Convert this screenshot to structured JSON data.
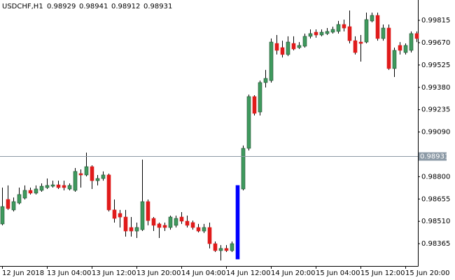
{
  "chart_data": {
    "type": "candlestick",
    "symbol": "USDCHF,H1",
    "ohlc": [
      0.98929,
      0.98941,
      0.98912,
      0.98931
    ],
    "categories": [
      "12 Jun 2018",
      null,
      null,
      null,
      null,
      null,
      null,
      null,
      "13 Jun 04:00",
      null,
      null,
      null,
      null,
      null,
      null,
      null,
      "13 Jun 12:00",
      null,
      null,
      null,
      null,
      null,
      null,
      null,
      "13 Jun 20:00",
      null,
      null,
      null,
      null,
      null,
      null,
      null,
      "14 Jun 04:00",
      null,
      null,
      null,
      null,
      null,
      null,
      null,
      "14 Jun 12:00",
      null,
      null,
      null,
      null,
      null,
      null,
      null,
      "14 Jun 20:00",
      null,
      null,
      null,
      null,
      null,
      null,
      null,
      "15 Jun 04:00",
      null,
      null,
      null,
      null,
      null,
      null,
      null,
      "15 Jun 12:00",
      null,
      null,
      null,
      null,
      null,
      null,
      null,
      "15 Jun 20:00",
      null,
      null
    ],
    "open": [
      0.98493,
      0.98652,
      0.98584,
      0.98629,
      0.98661,
      0.98711,
      0.98693,
      0.98711,
      0.98729,
      0.98738,
      0.98747,
      0.98743,
      0.9872,
      0.98711,
      0.9882,
      0.98811,
      0.98865,
      0.98774,
      0.98788,
      0.98811,
      0.98584,
      0.98561,
      0.98538,
      0.9847,
      0.98447,
      0.98456,
      0.98638,
      0.98529,
      0.98493,
      0.98484,
      0.9847,
      0.98484,
      0.98538,
      0.98511,
      0.98502,
      0.9847,
      0.98447,
      0.9847,
      0.98365,
      0.9832,
      0.98334,
      0.9832,
      0.98265,
      0.9872,
      0.98984,
      0.9932,
      0.9922,
      0.99411,
      0.99424,
      0.99665,
      0.99638,
      0.99593,
      0.99665,
      0.99638,
      0.99647,
      0.99711,
      0.99738,
      0.9972,
      0.99729,
      0.99738,
      0.99743,
      0.99788,
      0.99774,
      0.99683,
      0.99674,
      0.99674,
      0.99811,
      0.99847,
      0.99697,
      0.99765,
      0.99502,
      0.99652,
      0.99606,
      0.9962,
      0.99729
    ],
    "high": [
      0.98729,
      0.98743,
      0.98665,
      0.98729,
      0.98743,
      0.98729,
      0.98743,
      0.98756,
      0.98788,
      0.98774,
      0.98774,
      0.98774,
      0.98756,
      0.98856,
      0.98847,
      0.98956,
      0.98874,
      0.98811,
      0.98834,
      0.9882,
      0.98652,
      0.98584,
      0.98584,
      0.98538,
      0.98502,
      0.98911,
      0.98652,
      0.98538,
      0.98502,
      0.98502,
      0.98547,
      0.98547,
      0.9857,
      0.98547,
      0.98515,
      0.98493,
      0.98493,
      0.98502,
      0.98379,
      0.98356,
      0.98356,
      0.98379,
      0.98743,
      0.99002,
      0.99333,
      0.99329,
      0.99424,
      0.99493,
      0.99697,
      0.9972,
      0.99683,
      0.99711,
      0.99711,
      0.99674,
      0.99729,
      0.99756,
      0.99756,
      0.99756,
      0.99765,
      0.99774,
      0.99811,
      0.9982,
      0.99879,
      0.99711,
      0.9972,
      0.99865,
      0.99865,
      0.99865,
      0.99788,
      0.99788,
      0.99638,
      0.99674,
      0.99665,
      0.99743,
      0.99743
    ],
    "low": [
      0.98484,
      0.98584,
      0.98574,
      0.9862,
      0.98652,
      0.98684,
      0.98684,
      0.98702,
      0.9872,
      0.98729,
      0.9872,
      0.98711,
      0.98711,
      0.98702,
      0.98729,
      0.98802,
      0.9872,
      0.98743,
      0.98774,
      0.98574,
      0.98502,
      0.9847,
      0.98411,
      0.98411,
      0.98402,
      0.98447,
      0.98484,
      0.98447,
      0.98402,
      0.98447,
      0.98456,
      0.9847,
      0.98493,
      0.9847,
      0.98456,
      0.98438,
      0.98434,
      0.98334,
      0.98311,
      0.98256,
      0.98311,
      0.98311,
      0.98265,
      0.98711,
      0.9897,
      0.99197,
      0.99197,
      0.99379,
      0.99411,
      0.99593,
      0.99574,
      0.99583,
      0.9962,
      0.99629,
      0.99638,
      0.99697,
      0.99702,
      0.99711,
      0.9972,
      0.99729,
      0.99729,
      0.99743,
      0.99665,
      0.99593,
      0.99547,
      0.99665,
      0.99802,
      0.99683,
      0.99683,
      0.99493,
      0.99447,
      0.99593,
      0.99593,
      0.99606,
      0.99674
    ],
    "close": [
      0.98606,
      0.98593,
      0.98638,
      0.98684,
      0.98711,
      0.98693,
      0.9872,
      0.98738,
      0.98743,
      0.98747,
      0.98729,
      0.98729,
      0.98743,
      0.98834,
      0.98811,
      0.98865,
      0.98774,
      0.98788,
      0.98811,
      0.98584,
      0.98529,
      0.98538,
      0.98447,
      0.98447,
      0.9847,
      0.98638,
      0.98515,
      0.98484,
      0.9847,
      0.9847,
      0.98538,
      0.98529,
      0.98511,
      0.98484,
      0.9847,
      0.98447,
      0.9847,
      0.98365,
      0.9832,
      0.98334,
      0.9832,
      0.98365,
      0.98743,
      0.98984,
      0.9932,
      0.99211,
      0.99411,
      0.99438,
      0.99674,
      0.9962,
      0.99593,
      0.99674,
      0.99629,
      0.99652,
      0.99711,
      0.99729,
      0.9972,
      0.99738,
      0.99743,
      0.99756,
      0.99788,
      0.99765,
      0.99683,
      0.99606,
      0.99665,
      0.9982,
      0.99847,
      0.99697,
      0.99765,
      0.99502,
      0.9962,
      0.9962,
      0.99652,
      0.99729,
      0.99697
    ],
    "up_color": "#3f9a5e",
    "down_color": "#e01b1b",
    "highlight_index": 42,
    "highlight_color": "#0000ff",
    "ylim": [
      0.9822,
      0.99947
    ],
    "yticks": [
      0.99815,
      {
        "value": 0.9967,
        "label": "0.99670"
      },
      0.99525,
      {
        "value": 0.9938,
        "label": "0.99380"
      },
      0.99235,
      {
        "value": 0.9909,
        "label": "0.99090"
      },
      {
        "value": 0.988,
        "label": "0.98800"
      },
      0.98655,
      {
        "value": 0.9851,
        "label": "0.98510"
      },
      0.98365
    ],
    "grid": false
  }
}
